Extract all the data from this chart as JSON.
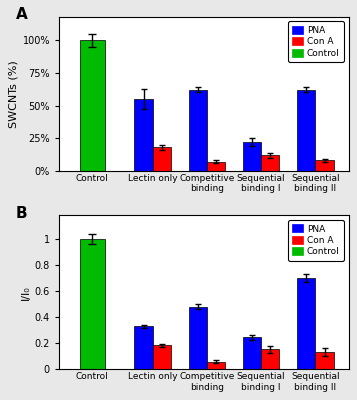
{
  "panel_A": {
    "ylabel": "SWCNTs (%)",
    "yticks": [
      0,
      25,
      50,
      75,
      100
    ],
    "yticklabels": [
      "0%",
      "25%",
      "50%",
      "75%",
      "100%"
    ],
    "ylim": [
      0,
      118
    ],
    "categories": [
      "Control",
      "Lectin only",
      "Competitive\nbinding",
      "Sequential\nbinding I",
      "Sequential\nbinding II"
    ],
    "pna_values": [
      null,
      55,
      62,
      22,
      62
    ],
    "cona_values": [
      null,
      18,
      7,
      12,
      8
    ],
    "control_values": [
      100,
      null,
      null,
      null,
      null
    ],
    "pna_errors": [
      null,
      8,
      2,
      3,
      2
    ],
    "cona_errors": [
      null,
      2,
      1,
      2,
      1
    ],
    "control_errors": [
      5,
      null,
      null,
      null,
      null
    ]
  },
  "panel_B": {
    "ylabel": "I/I₀",
    "yticks": [
      0,
      0.2,
      0.4,
      0.6,
      0.8,
      1.0
    ],
    "yticklabels": [
      "0",
      "0.2",
      "0.4",
      "0.6",
      "0.8",
      "1"
    ],
    "ylim": [
      0,
      1.18
    ],
    "categories": [
      "Control",
      "Lectin only",
      "Competitive\nbinding",
      "Sequential\nbinding I",
      "Sequential\nbinding II"
    ],
    "pna_values": [
      null,
      0.33,
      0.48,
      0.245,
      0.7
    ],
    "cona_values": [
      null,
      0.185,
      0.06,
      0.155,
      0.135
    ],
    "control_values": [
      1.0,
      null,
      null,
      null,
      null
    ],
    "pna_errors": [
      null,
      0.01,
      0.02,
      0.02,
      0.03
    ],
    "cona_errors": [
      null,
      0.01,
      0.01,
      0.025,
      0.03
    ],
    "control_errors": [
      0.04,
      null,
      null,
      null,
      null
    ]
  },
  "colors": {
    "pna": "#0000FF",
    "cona": "#FF0000",
    "control": "#00BB00"
  },
  "legend_labels": [
    "PNA",
    "Con A",
    "Control"
  ],
  "panel_labels": [
    "A",
    "B"
  ],
  "fig_bg": "#E8E8E8",
  "ax_bg": "#FFFFFF"
}
